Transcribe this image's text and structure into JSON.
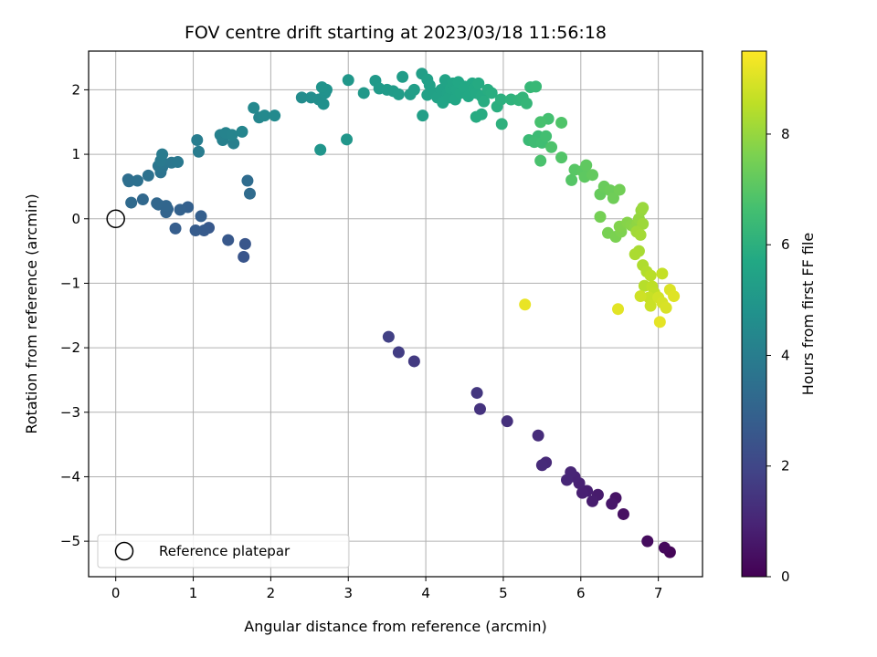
{
  "chart_data": {
    "type": "scatter",
    "title": "FOV centre drift starting at 2023/03/18 11:56:18",
    "xlabel": "Angular distance from reference (arcmin)",
    "ylabel": "Rotation from reference (arcmin)",
    "xlim": [
      -0.35,
      7.57
    ],
    "ylim": [
      -5.55,
      2.6
    ],
    "xticks": [
      0,
      1,
      2,
      3,
      4,
      5,
      6,
      7
    ],
    "yticks": [
      -5,
      -4,
      -3,
      -2,
      -1,
      0,
      1,
      2
    ],
    "grid": true,
    "colormap": "viridis",
    "colorbar": {
      "label": "Hours from first FF file",
      "range": [
        0,
        9.5
      ],
      "ticks": [
        0,
        2,
        4,
        6,
        8
      ]
    },
    "legend": {
      "placement": "lower-left",
      "entries": [
        {
          "label": "Reference platepar",
          "marker": "open-circle"
        }
      ]
    },
    "reference_point": {
      "x": 0,
      "y": 0
    },
    "series": [
      {
        "points": [
          [
            7.15,
            -5.17,
            0.1
          ],
          [
            7.08,
            -5.1,
            0.2
          ],
          [
            6.86,
            -5.0,
            0.3
          ],
          [
            6.55,
            -4.58,
            0.4
          ],
          [
            6.45,
            -4.33,
            0.5
          ],
          [
            6.4,
            -4.42,
            0.6
          ],
          [
            6.22,
            -4.28,
            0.7
          ],
          [
            6.15,
            -4.38,
            0.75
          ],
          [
            6.08,
            -4.22,
            0.8
          ],
          [
            6.02,
            -4.25,
            0.85
          ],
          [
            5.98,
            -4.1,
            0.9
          ],
          [
            5.92,
            -4.0,
            0.95
          ],
          [
            5.87,
            -3.93,
            1.0
          ],
          [
            5.82,
            -4.05,
            1.05
          ],
          [
            5.55,
            -3.78,
            1.1
          ],
          [
            5.5,
            -3.82,
            1.15
          ],
          [
            5.45,
            -3.36,
            1.2
          ],
          [
            5.05,
            -3.14,
            1.3
          ],
          [
            4.7,
            -2.95,
            1.4
          ],
          [
            4.66,
            -2.7,
            1.5
          ],
          [
            3.85,
            -2.21,
            1.6
          ],
          [
            3.65,
            -2.07,
            1.7
          ],
          [
            3.52,
            -1.83,
            1.8
          ],
          [
            1.65,
            -0.59,
            2.5
          ],
          [
            1.67,
            -0.39,
            2.55
          ],
          [
            1.45,
            -0.33,
            2.6
          ],
          [
            1.2,
            -0.14,
            2.65
          ],
          [
            1.14,
            -0.18,
            2.7
          ],
          [
            1.03,
            -0.18,
            2.75
          ],
          [
            0.77,
            -0.15,
            2.8
          ],
          [
            1.1,
            0.04,
            2.85
          ],
          [
            0.93,
            0.18,
            2.9
          ],
          [
            0.83,
            0.14,
            2.95
          ],
          [
            0.67,
            0.15,
            3.0
          ],
          [
            0.65,
            0.1,
            3.05
          ],
          [
            0.55,
            0.22,
            3.1
          ],
          [
            0.65,
            0.2,
            3.12
          ],
          [
            0.53,
            0.24,
            3.15
          ],
          [
            0.35,
            0.3,
            3.2
          ],
          [
            0.2,
            0.25,
            3.25
          ],
          [
            1.73,
            0.39,
            3.3
          ],
          [
            1.7,
            0.59,
            3.35
          ],
          [
            0.16,
            0.61,
            3.4
          ],
          [
            0.17,
            0.58,
            3.45
          ],
          [
            0.28,
            0.59,
            3.5
          ],
          [
            0.42,
            0.67,
            3.55
          ],
          [
            0.58,
            0.72,
            3.6
          ],
          [
            0.6,
            0.8,
            3.65
          ],
          [
            0.55,
            0.82,
            3.7
          ],
          [
            0.62,
            0.86,
            3.72
          ],
          [
            0.72,
            0.87,
            3.75
          ],
          [
            0.8,
            0.88,
            3.8
          ],
          [
            0.58,
            0.9,
            3.85
          ],
          [
            0.6,
            1.0,
            3.9
          ],
          [
            1.07,
            1.04,
            3.95
          ],
          [
            1.05,
            1.22,
            4.0
          ],
          [
            1.52,
            1.17,
            4.05
          ],
          [
            1.38,
            1.22,
            4.1
          ],
          [
            1.35,
            1.3,
            4.15
          ],
          [
            1.42,
            1.33,
            4.2
          ],
          [
            1.5,
            1.3,
            4.25
          ],
          [
            1.63,
            1.35,
            4.3
          ],
          [
            1.85,
            1.57,
            4.35
          ],
          [
            1.78,
            1.72,
            4.4
          ],
          [
            1.92,
            1.6,
            4.45
          ],
          [
            2.05,
            1.6,
            4.5
          ],
          [
            2.4,
            1.88,
            4.55
          ],
          [
            2.52,
            1.88,
            4.6
          ],
          [
            2.62,
            1.85,
            4.65
          ],
          [
            2.68,
            1.78,
            4.7
          ],
          [
            2.7,
            1.95,
            4.75
          ],
          [
            2.72,
            2.0,
            4.8
          ],
          [
            2.66,
            2.04,
            4.85
          ],
          [
            2.64,
            1.07,
            4.9
          ],
          [
            2.98,
            1.23,
            4.95
          ],
          [
            3.0,
            2.15,
            5.0
          ],
          [
            3.2,
            1.95,
            5.05
          ],
          [
            3.35,
            2.14,
            5.1
          ],
          [
            3.4,
            2.02,
            5.12
          ],
          [
            3.5,
            2.0,
            5.15
          ],
          [
            3.58,
            1.98,
            5.18
          ],
          [
            3.65,
            1.93,
            5.2
          ],
          [
            3.7,
            2.2,
            5.22
          ],
          [
            3.8,
            1.93,
            5.25
          ],
          [
            3.85,
            2.0,
            5.28
          ],
          [
            3.95,
            2.25,
            5.3
          ],
          [
            3.96,
            1.6,
            5.32
          ],
          [
            4.02,
            2.16,
            5.35
          ],
          [
            4.05,
            2.07,
            5.38
          ],
          [
            4.02,
            1.92,
            5.4
          ],
          [
            4.1,
            1.95,
            5.42
          ],
          [
            4.15,
            1.88,
            5.44
          ],
          [
            4.2,
            2.0,
            5.46
          ],
          [
            4.25,
            2.15,
            5.48
          ],
          [
            4.28,
            1.95,
            5.5
          ],
          [
            4.22,
            1.8,
            5.52
          ],
          [
            4.3,
            1.88,
            5.54
          ],
          [
            4.32,
            2.02,
            5.56
          ],
          [
            4.35,
            2.1,
            5.58
          ],
          [
            4.38,
            1.85,
            5.6
          ],
          [
            4.4,
            2.0,
            5.62
          ],
          [
            4.42,
            2.12,
            5.64
          ],
          [
            4.45,
            1.95,
            5.66
          ],
          [
            4.5,
            2.05,
            5.68
          ],
          [
            4.55,
            1.9,
            5.7
          ],
          [
            4.6,
            2.1,
            5.72
          ],
          [
            4.62,
            2.02,
            5.74
          ],
          [
            4.65,
            1.95,
            5.76
          ],
          [
            4.68,
            2.1,
            5.78
          ],
          [
            4.72,
            1.9,
            5.8
          ],
          [
            4.65,
            1.58,
            5.82
          ],
          [
            4.72,
            1.62,
            5.84
          ],
          [
            4.75,
            1.82,
            5.86
          ],
          [
            4.8,
            2.0,
            5.88
          ],
          [
            4.85,
            1.95,
            5.9
          ],
          [
            4.92,
            1.74,
            5.95
          ],
          [
            4.97,
            1.85,
            6.0
          ],
          [
            4.98,
            1.47,
            6.05
          ],
          [
            5.1,
            1.85,
            6.1
          ],
          [
            5.2,
            1.84,
            6.15
          ],
          [
            5.25,
            1.88,
            6.2
          ],
          [
            5.3,
            1.79,
            6.25
          ],
          [
            5.35,
            2.04,
            6.3
          ],
          [
            5.42,
            2.05,
            6.35
          ],
          [
            5.33,
            1.22,
            6.4
          ],
          [
            5.45,
            1.28,
            6.45
          ],
          [
            5.4,
            1.19,
            6.5
          ],
          [
            5.5,
            1.18,
            6.55
          ],
          [
            5.55,
            1.28,
            6.6
          ],
          [
            5.58,
            1.55,
            6.65
          ],
          [
            5.48,
            1.5,
            6.7
          ],
          [
            5.48,
            0.9,
            6.75
          ],
          [
            5.62,
            1.11,
            6.8
          ],
          [
            5.75,
            1.49,
            6.85
          ],
          [
            5.75,
            0.95,
            6.9
          ],
          [
            5.88,
            0.6,
            6.95
          ],
          [
            5.92,
            0.76,
            7.0
          ],
          [
            6.02,
            0.74,
            7.05
          ],
          [
            6.05,
            0.65,
            7.1
          ],
          [
            6.07,
            0.83,
            7.15
          ],
          [
            6.15,
            0.68,
            7.2
          ],
          [
            6.25,
            0.38,
            7.25
          ],
          [
            6.3,
            0.5,
            7.3
          ],
          [
            6.38,
            0.44,
            7.35
          ],
          [
            6.42,
            0.32,
            7.4
          ],
          [
            6.5,
            0.45,
            7.45
          ],
          [
            6.25,
            0.03,
            7.5
          ],
          [
            6.35,
            -0.22,
            7.55
          ],
          [
            6.45,
            -0.28,
            7.6
          ],
          [
            6.52,
            -0.2,
            7.65
          ],
          [
            6.5,
            -0.12,
            7.7
          ],
          [
            6.6,
            -0.06,
            7.75
          ],
          [
            6.65,
            -0.1,
            7.8
          ],
          [
            6.7,
            -0.14,
            7.85
          ],
          [
            6.73,
            -0.07,
            7.9
          ],
          [
            6.75,
            0.0,
            7.95
          ],
          [
            6.78,
            0.13,
            8.0
          ],
          [
            6.8,
            0.17,
            8.05
          ],
          [
            6.8,
            -0.08,
            8.1
          ],
          [
            6.72,
            -0.2,
            8.15
          ],
          [
            6.77,
            -0.25,
            8.2
          ],
          [
            6.75,
            -0.5,
            8.25
          ],
          [
            6.7,
            -0.55,
            8.3
          ],
          [
            6.8,
            -0.72,
            8.35
          ],
          [
            6.85,
            -0.82,
            8.4
          ],
          [
            6.82,
            -1.04,
            8.45
          ],
          [
            6.9,
            -0.88,
            8.5
          ],
          [
            6.92,
            -1.05,
            8.55
          ],
          [
            6.95,
            -1.15,
            8.6
          ],
          [
            7.05,
            -0.85,
            8.65
          ],
          [
            6.88,
            -1.22,
            8.7
          ],
          [
            6.9,
            -1.35,
            8.75
          ],
          [
            6.77,
            -1.2,
            8.8
          ],
          [
            7.0,
            -1.22,
            8.85
          ],
          [
            7.05,
            -1.3,
            8.9
          ],
          [
            7.1,
            -1.38,
            8.95
          ],
          [
            7.15,
            -1.1,
            9.0
          ],
          [
            7.2,
            -1.2,
            9.05
          ],
          [
            6.48,
            -1.4,
            9.1
          ],
          [
            7.02,
            -1.6,
            9.15
          ],
          [
            5.28,
            -1.33,
            9.2
          ]
        ]
      }
    ]
  }
}
